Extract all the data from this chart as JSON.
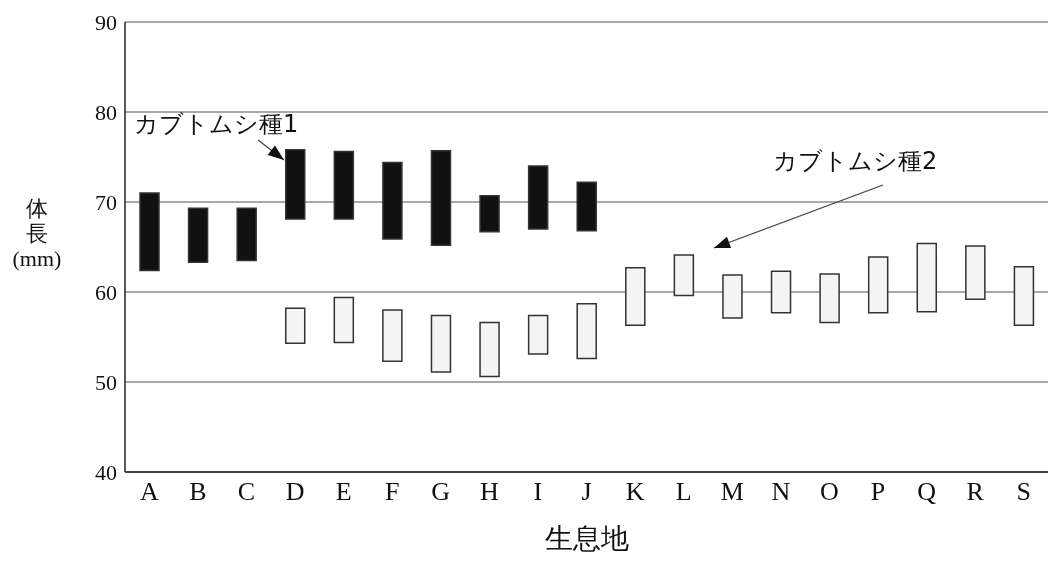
{
  "chart_data": {
    "type": "bar",
    "xlabel": "生息地",
    "ylabel": "体長\n(mm)",
    "categories": [
      "A",
      "B",
      "C",
      "D",
      "E",
      "F",
      "G",
      "H",
      "I",
      "J",
      "K",
      "L",
      "M",
      "N",
      "O",
      "P",
      "Q",
      "R",
      "S"
    ],
    "series": [
      {
        "name": "カブトムシ種1",
        "color": "#111111",
        "base": [
          62.4,
          63.3,
          63.5,
          68.1,
          68.1,
          65.9,
          65.2,
          66.7,
          67.0,
          66.8,
          null,
          null,
          null,
          null,
          null,
          null,
          null,
          null,
          null
        ],
        "values": [
          8.6,
          6.0,
          5.8,
          7.7,
          7.5,
          8.5,
          10.5,
          4.0,
          7.0,
          5.4,
          null,
          null,
          null,
          null,
          null,
          null,
          null,
          null,
          null
        ]
      },
      {
        "name": "カブトムシ種2",
        "color": "#f4f4f4",
        "base": [
          null,
          null,
          null,
          54.3,
          54.4,
          52.3,
          51.1,
          50.6,
          53.1,
          52.6,
          56.3,
          59.6,
          57.1,
          57.7,
          56.6,
          57.7,
          57.8,
          59.2,
          56.3
        ],
        "values": [
          null,
          null,
          null,
          3.9,
          5.0,
          5.7,
          6.3,
          6.0,
          4.3,
          6.1,
          6.4,
          4.5,
          4.8,
          4.6,
          5.4,
          6.2,
          7.6,
          5.9,
          6.5
        ]
      }
    ],
    "ylim": [
      40,
      90
    ],
    "yticks": [
      40,
      50,
      60,
      70,
      80,
      90
    ],
    "grid": "y",
    "legend": false
  }
}
